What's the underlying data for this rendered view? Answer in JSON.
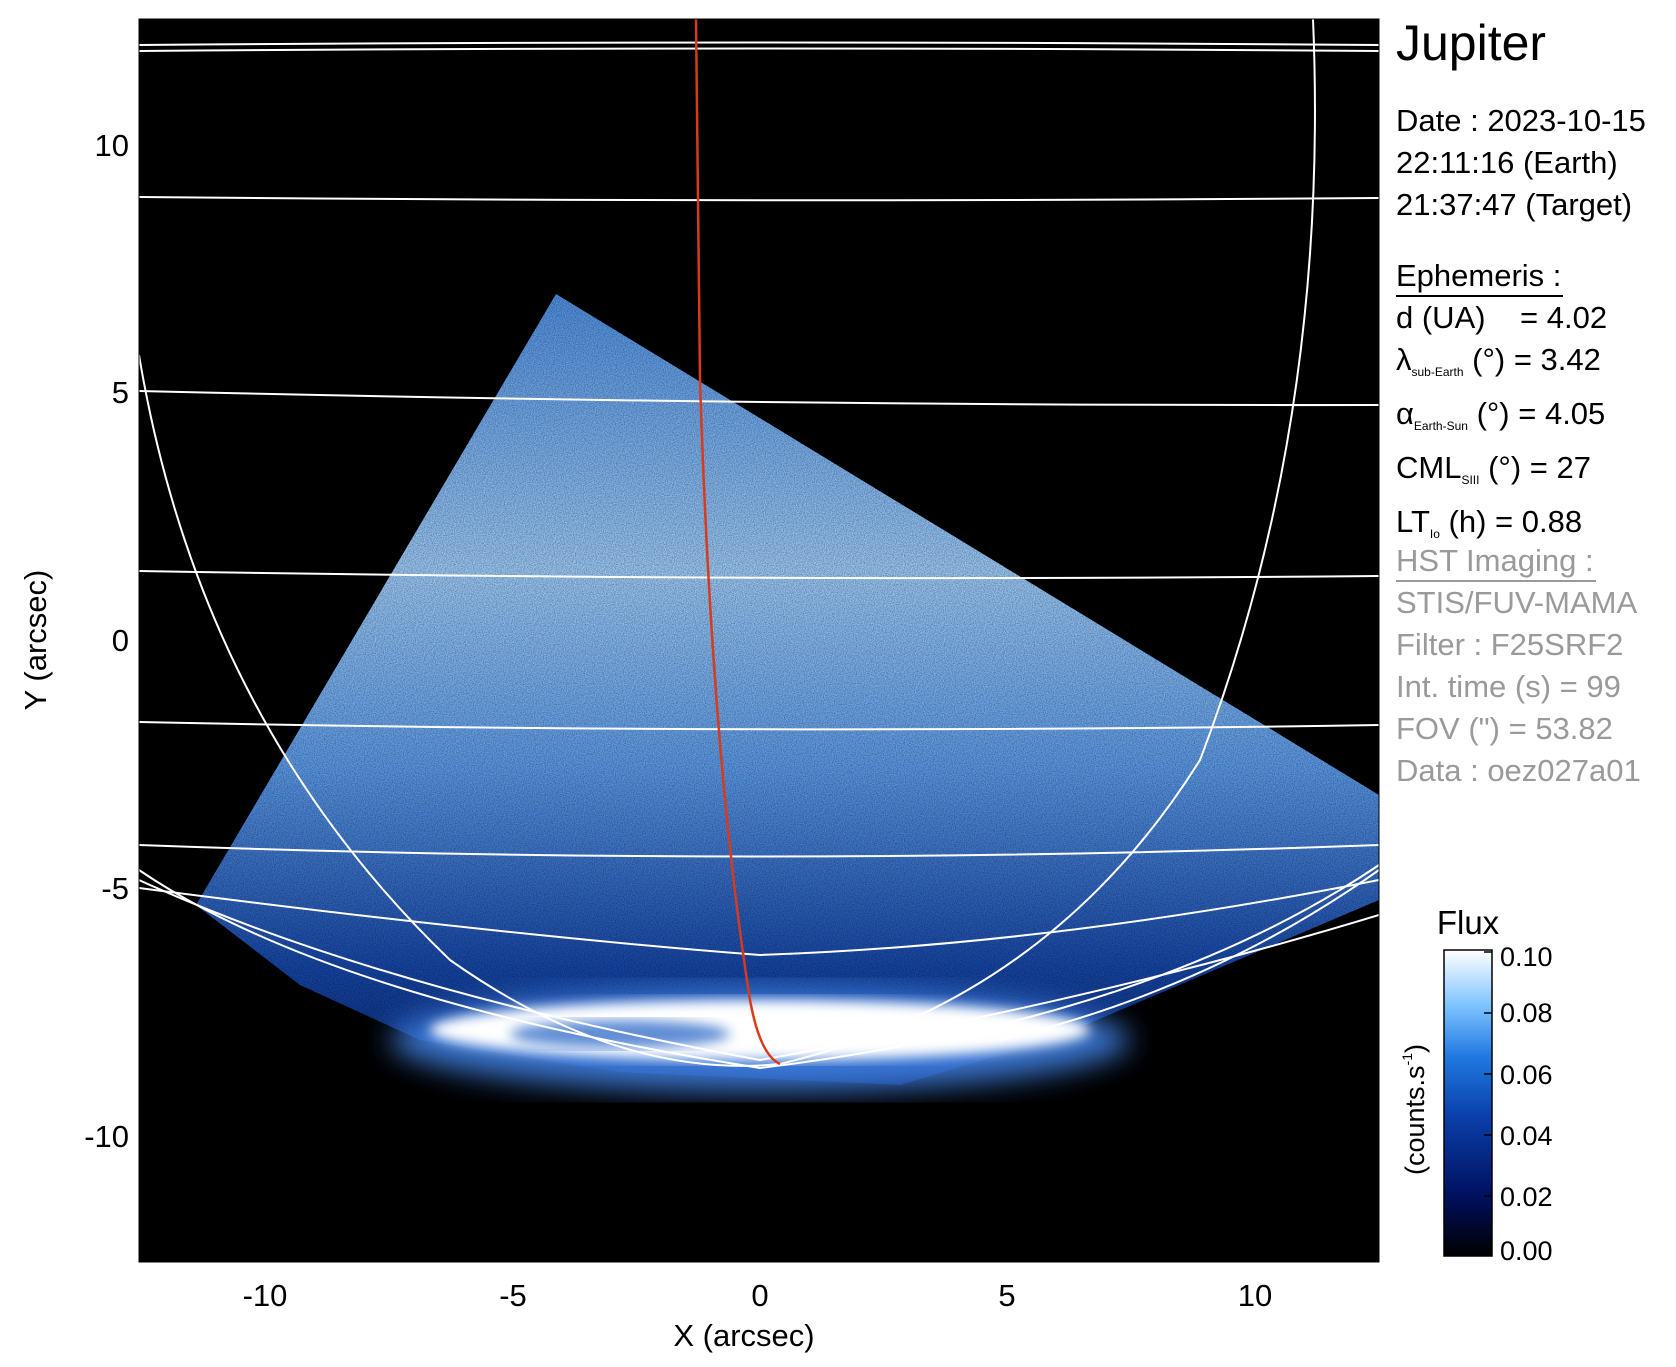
{
  "title": "Jupiter",
  "date": {
    "line1": "Date : 2023-10-15",
    "line2": "22:11:16 (Earth)",
    "line3": "21:37:47 (Target)"
  },
  "ephemeris": {
    "heading": "Ephemeris :",
    "d_label": "d (UA)",
    "d_value": "= 4.02",
    "lambda_sym": "λ",
    "lambda_sub": "sub-Earth",
    "lambda_value": "(°) = 3.42",
    "alpha_sym": "α",
    "alpha_sub": "Earth-Sun",
    "alpha_value": "(°) = 4.05",
    "cml_sym": "CML",
    "cml_sub": "SIII",
    "cml_value": "(°) = 27",
    "lt_sym": "LT",
    "lt_sub": "Io",
    "lt_value": "(h) = 0.88"
  },
  "hst": {
    "heading": "HST Imaging :",
    "instrument": "STIS/FUV-MAMA",
    "filter": "Filter : F25SRF2",
    "int_time": "Int. time (s) = 99",
    "fov": "FOV (\") = 53.82",
    "data": "Data : oez027a01"
  },
  "image": {
    "xlabel": "X (arcsec)",
    "ylabel": "Y (arcsec)",
    "xticks": [
      "-10",
      "-5",
      "0",
      "5",
      "10"
    ],
    "yticks": [
      "10",
      "5",
      "0",
      "-5",
      "-10"
    ],
    "xlim": [
      -12.5,
      12.5
    ],
    "ylim": [
      -12.5,
      12.5
    ]
  },
  "colorbar": {
    "title": "Flux",
    "label": "(counts.s",
    "label_sup": "-1",
    "label_end": ")",
    "ticks": [
      "0.10",
      "0.08",
      "0.06",
      "0.04",
      "0.02",
      "0.00"
    ]
  },
  "colors": {
    "background": "#000000",
    "grid": "#ffffff",
    "footprint": "#d83a1a",
    "colormap": [
      "#000000",
      "#001060",
      "#0a3ea8",
      "#1f78e0",
      "#7fc4ff",
      "#ffffff"
    ]
  }
}
